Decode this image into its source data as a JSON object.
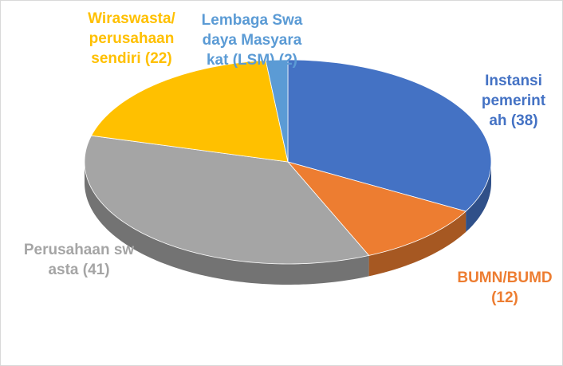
{
  "chart_data": {
    "type": "pie3d",
    "categories": [
      "Instansi pemerintah",
      "BUMN/BUMD",
      "Perusahaan swasta",
      "Wiraswasta/perusahaan sendiri",
      "Lembaga Swadaya Masyarakat (LSM)"
    ],
    "values": [
      38,
      12,
      41,
      22,
      2
    ],
    "value_labels": [
      "(38)",
      "(12)",
      "(41)",
      "(22)",
      "(2)"
    ],
    "colors": [
      "#4472c4",
      "#ed7d31",
      "#a5a5a5",
      "#ffc000",
      "#5b9bd5"
    ]
  }
}
